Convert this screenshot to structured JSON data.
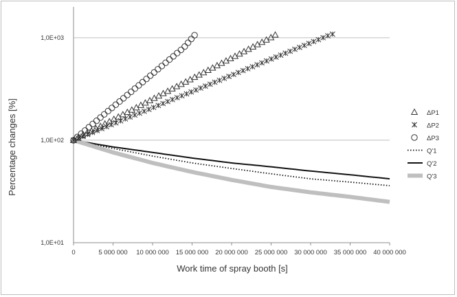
{
  "chart_data": {
    "type": "scatter",
    "title": "",
    "xlabel": "Work time of spray booth [s]",
    "ylabel": "Percentage changes [%]",
    "y_scale": "log",
    "xlim": [
      0,
      40000000
    ],
    "ylim": [
      10,
      2000
    ],
    "grid": true,
    "legend_position": "right",
    "x_tick_labels": [
      "0",
      "5 000 000",
      "10 000 000",
      "15 000 000",
      "20 000 000",
      "25 000 000",
      "30 000 000",
      "35 000 000",
      "40 000 000"
    ],
    "x_ticks": [
      0,
      5000000,
      10000000,
      15000000,
      20000000,
      25000000,
      30000000,
      35000000,
      40000000
    ],
    "y_tick_labels": [
      "1,0E+01",
      "1,0E+02",
      "1,0E+03"
    ],
    "y_ticks": [
      10,
      100,
      1000
    ],
    "series": [
      {
        "name": "ΔP1",
        "marker": "triangle",
        "style": "markers",
        "color": "#333333",
        "x": [
          0,
          2500000,
          5000000,
          7500000,
          10000000,
          12500000,
          15000000,
          17500000,
          20000000,
          22500000,
          25000000,
          25800000
        ],
        "y": [
          100,
          126,
          159,
          200,
          252,
          318,
          400,
          504,
          635,
          800,
          1008,
          1100
        ]
      },
      {
        "name": "ΔP2",
        "marker": "star",
        "style": "markers",
        "color": "#333333",
        "x": [
          0,
          2500000,
          5000000,
          7500000,
          10000000,
          12500000,
          15000000,
          17500000,
          20000000,
          22500000,
          25000000,
          27500000,
          30000000,
          32500000,
          33100000
        ],
        "y": [
          100,
          120,
          144,
          173,
          207,
          249,
          298,
          358,
          430,
          516,
          619,
          743,
          892,
          1070,
          1100
        ]
      },
      {
        "name": "ΔP3",
        "marker": "circle",
        "style": "markers",
        "color": "#333333",
        "x": [
          0,
          2000000,
          4000000,
          6000000,
          8000000,
          10000000,
          12000000,
          14000000,
          15500000
        ],
        "y": [
          100,
          135,
          182,
          245,
          330,
          445,
          600,
          808,
          1100
        ]
      },
      {
        "name": "Q'1",
        "style": "dotted",
        "color": "#111111",
        "x": [
          0,
          5000000,
          10000000,
          15000000,
          20000000,
          25000000,
          30000000,
          35000000,
          40000000
        ],
        "y": [
          100,
          83,
          70,
          60,
          53,
          47,
          42,
          39,
          36
        ]
      },
      {
        "name": "Q'2",
        "style": "solid",
        "color": "#111111",
        "x": [
          0,
          5000000,
          10000000,
          15000000,
          20000000,
          25000000,
          30000000,
          35000000,
          40000000
        ],
        "y": [
          100,
          86,
          76,
          67,
          60,
          55,
          50,
          46,
          42
        ]
      },
      {
        "name": "Q'3",
        "style": "thick",
        "color": "#bfbfbf",
        "x": [
          0,
          5000000,
          10000000,
          15000000,
          20000000,
          25000000,
          30000000,
          35000000,
          40000000
        ],
        "y": [
          100,
          76,
          60,
          49,
          41,
          35,
          31,
          28,
          25
        ]
      }
    ]
  }
}
